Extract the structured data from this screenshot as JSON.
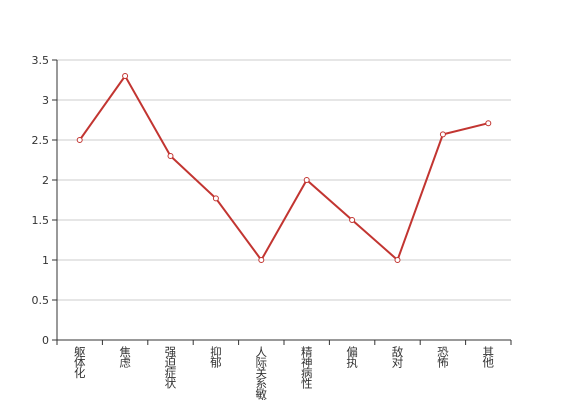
{
  "chart_data": {
    "type": "line",
    "categories": [
      "躯体化",
      "焦虑",
      "强迫症状",
      "抑郁",
      "人际关系敏感",
      "精神病性",
      "偏执",
      "敌对",
      "恐怖",
      "其他"
    ],
    "series": [
      {
        "color": "#c23531",
        "values": [
          2.5,
          3.3,
          2.3,
          1.77,
          1.0,
          2.0,
          1.5,
          1.0,
          2.57,
          2.71
        ]
      }
    ],
    "ylim": [
      0,
      3.5
    ],
    "yticks": [
      0,
      0.5,
      1,
      1.5,
      2,
      2.5,
      3,
      3.5
    ],
    "grid": true
  }
}
